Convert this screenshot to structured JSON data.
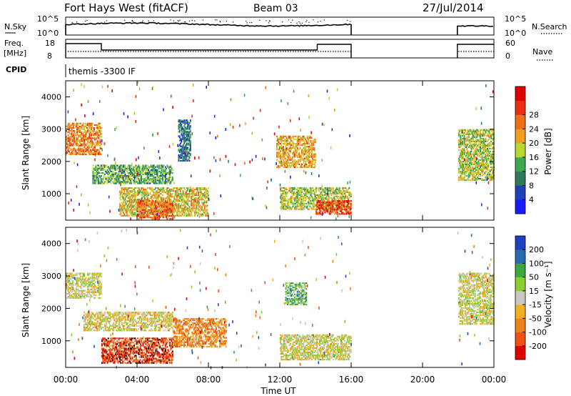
{
  "header": {
    "station": "Fort Hays West (fitACF)",
    "beam": "Beam 03",
    "date": "27/Jul/2014"
  },
  "noise_panel": {
    "left_label": "N.Sky",
    "right_label": "N.Search",
    "left_ticks": [
      "10^5",
      "10^0"
    ],
    "right_ticks": [
      "10^5",
      "10^0"
    ]
  },
  "freq_panel": {
    "left_label_1": "Freq.",
    "left_label_2": "[MHz]",
    "right_label": "Nave",
    "left_ticks": [
      "18",
      "8"
    ],
    "right_ticks": [
      "60",
      "0"
    ]
  },
  "cpid": {
    "label": "CPID",
    "value": "themis -3300 IF"
  },
  "x_axis": {
    "label": "Time UT",
    "ticks": [
      "00:00",
      "04:00",
      "08:00",
      "12:00",
      "16:00",
      "20:00",
      "00:00"
    ]
  },
  "y_axis": {
    "label": "Slant Range [km]",
    "ticks": [
      "1000",
      "2000",
      "3000",
      "4000"
    ]
  },
  "power_colorbar": {
    "label": "Power [dB]",
    "ticks": [
      "4",
      "8",
      "12",
      "16",
      "20",
      "24",
      "28"
    ],
    "colors": [
      "#1a1aff",
      "#2040b8",
      "#2f7a5a",
      "#3ca850",
      "#b8d830",
      "#f0a020",
      "#f07018",
      "#e83010",
      "#e00000"
    ]
  },
  "velocity_colorbar": {
    "label": "Velocity [m s⁻¹]",
    "ticks": [
      "200",
      "100",
      "50",
      "15",
      "-15",
      "-50",
      "-100",
      "-200"
    ],
    "colors": [
      "#2040c0",
      "#2a6ab0",
      "#3ca840",
      "#8ad030",
      "#c8c8c0",
      "#f0b020",
      "#f08018",
      "#f05010",
      "#e00000"
    ]
  },
  "chart_data": [
    {
      "type": "heatmap",
      "title": "Power [dB]",
      "xlabel": "Time UT",
      "ylabel": "Slant Range [km]",
      "xlim": [
        0,
        24
      ],
      "ylim": [
        180,
        4500
      ],
      "clim": [
        0,
        32
      ],
      "data_gaps": [
        [
          16.0,
          21.9
        ]
      ],
      "regions": [
        {
          "t": [
            0.0,
            2.0
          ],
          "r": [
            2200,
            3200
          ],
          "value": 22
        },
        {
          "t": [
            1.5,
            6.0
          ],
          "r": [
            1300,
            1900
          ],
          "value": 12
        },
        {
          "t": [
            3.0,
            8.0
          ],
          "r": [
            300,
            1200
          ],
          "value": 18
        },
        {
          "t": [
            4.0,
            6.0
          ],
          "r": [
            200,
            800
          ],
          "value": 24
        },
        {
          "t": [
            6.3,
            7.0
          ],
          "r": [
            2000,
            3300
          ],
          "value": 8
        },
        {
          "t": [
            11.8,
            14.0
          ],
          "r": [
            1800,
            2800
          ],
          "value": 20
        },
        {
          "t": [
            12.0,
            16.0
          ],
          "r": [
            500,
            1200
          ],
          "value": 16
        },
        {
          "t": [
            14.0,
            16.0
          ],
          "r": [
            350,
            800
          ],
          "value": 26
        },
        {
          "t": [
            22.0,
            24.0
          ],
          "r": [
            1400,
            3000
          ],
          "value": 16
        }
      ]
    },
    {
      "type": "heatmap",
      "title": "Velocity [m s⁻¹]",
      "xlabel": "Time UT",
      "ylabel": "Slant Range [km]",
      "xlim": [
        0,
        24
      ],
      "ylim": [
        180,
        4500
      ],
      "clim": [
        -200,
        200
      ],
      "data_gaps": [
        [
          16.0,
          21.9
        ]
      ],
      "regions": [
        {
          "t": [
            0.0,
            2.0
          ],
          "r": [
            2300,
            3100
          ],
          "value": 0
        },
        {
          "t": [
            1.0,
            6.0
          ],
          "r": [
            1300,
            1900
          ],
          "value": -10
        },
        {
          "t": [
            2.0,
            6.0
          ],
          "r": [
            300,
            1100
          ],
          "value": -150
        },
        {
          "t": [
            6.0,
            9.0
          ],
          "r": [
            800,
            1700
          ],
          "value": -80
        },
        {
          "t": [
            12.3,
            13.5
          ],
          "r": [
            2100,
            2800
          ],
          "value": 60
        },
        {
          "t": [
            12.0,
            16.0
          ],
          "r": [
            400,
            1200
          ],
          "value": 0
        },
        {
          "t": [
            22.0,
            24.0
          ],
          "r": [
            1500,
            3100
          ],
          "value": 0
        }
      ]
    }
  ]
}
